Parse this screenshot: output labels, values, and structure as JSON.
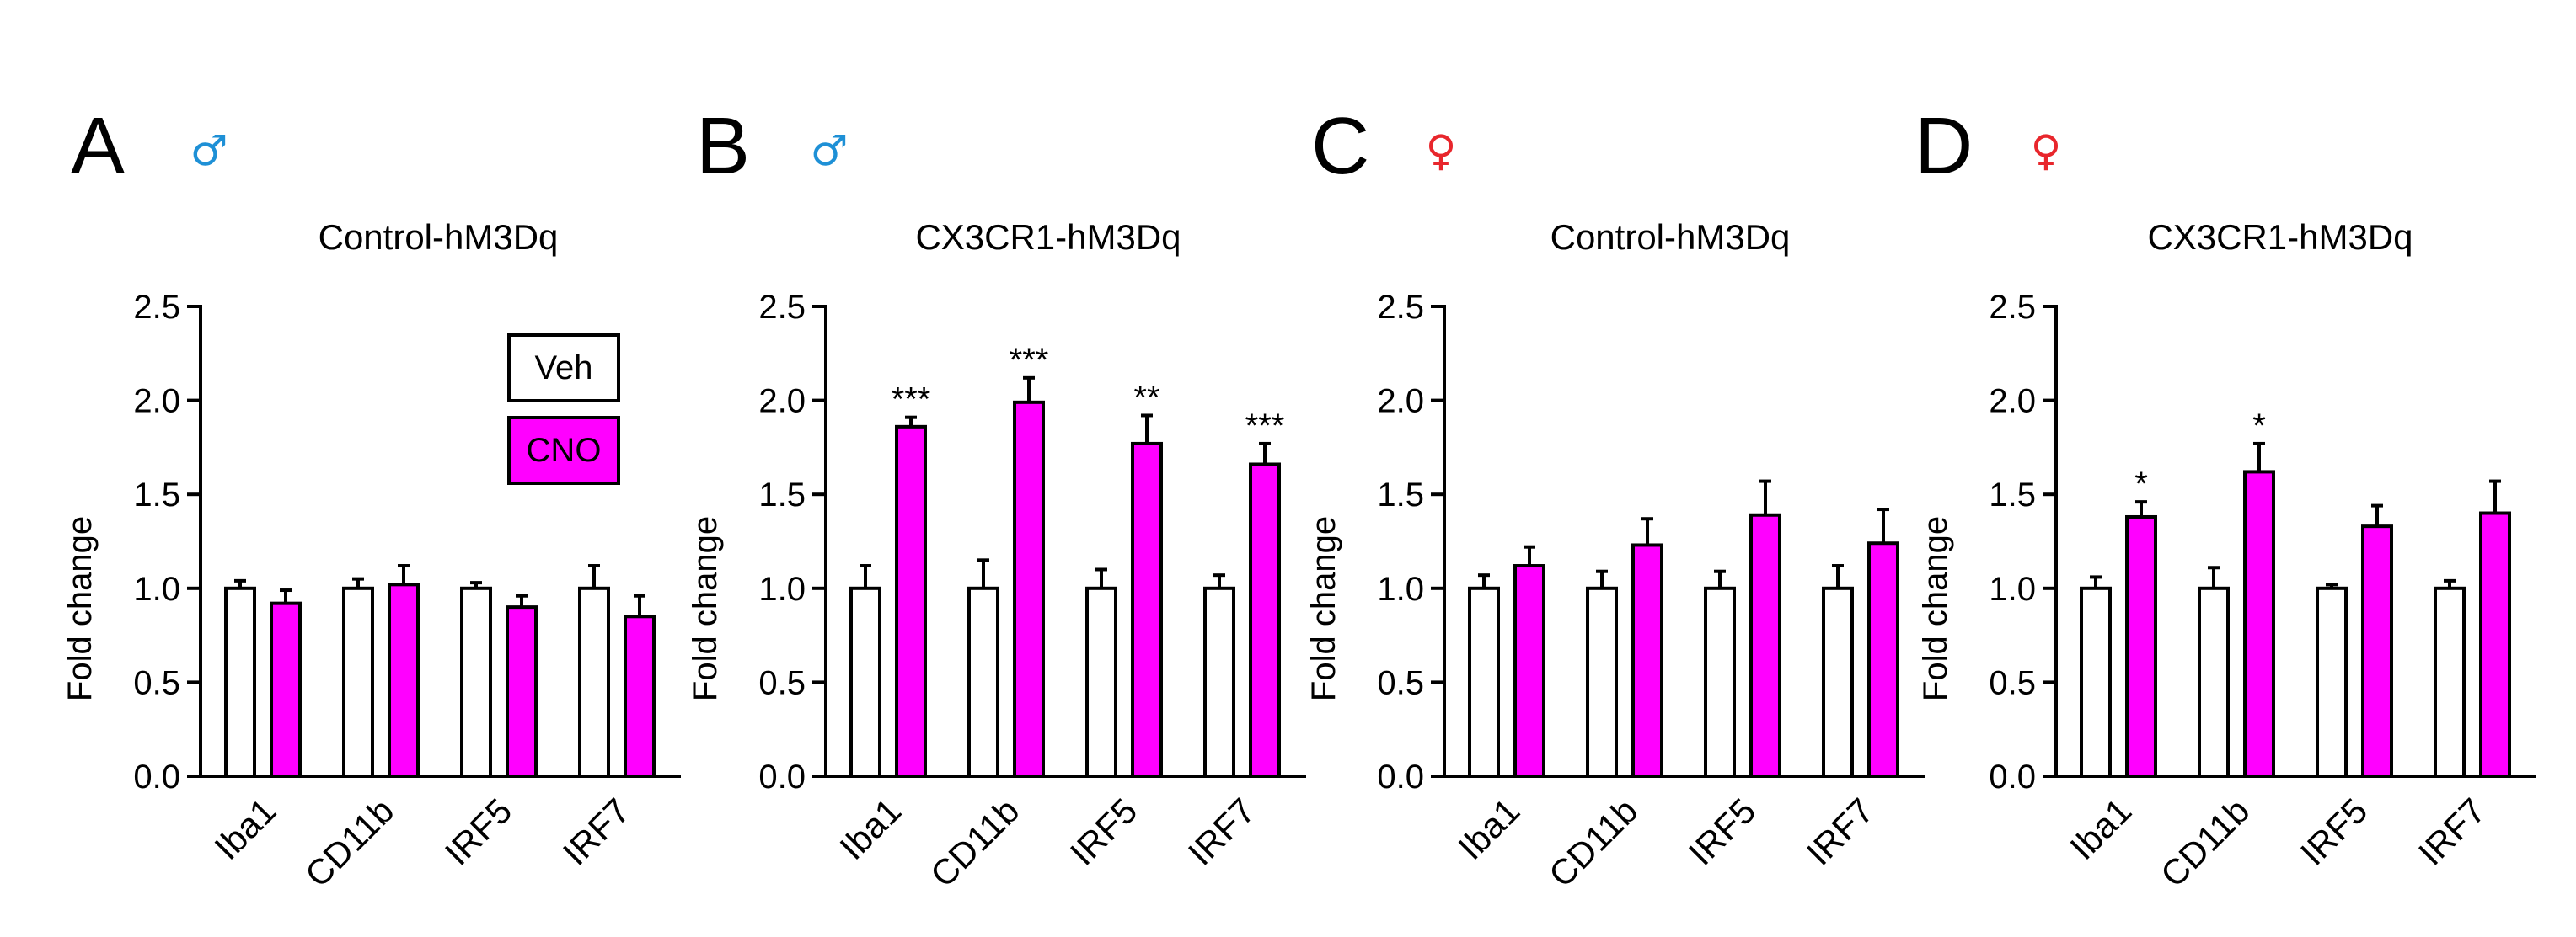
{
  "figure": {
    "legend": {
      "entries": [
        {
          "label": "Veh",
          "color": "#ffffff"
        },
        {
          "label": "CNO",
          "color": "#ff00ff"
        }
      ]
    }
  },
  "chart_data": [
    {
      "panel": "A",
      "sex_symbol": "♂",
      "sex_color": "#1e90d6",
      "type": "bar",
      "title": "Control-hM3Dq",
      "ylabel": "Fold change",
      "ylim": [
        0,
        2.5
      ],
      "yticks": [
        "0.0",
        "0.5",
        "1.0",
        "1.5",
        "2.0",
        "2.5"
      ],
      "categories": [
        "Iba1",
        "CD11b",
        "IRF5",
        "IRF7"
      ],
      "series": [
        {
          "name": "Veh",
          "color": "#ffffff",
          "values": [
            1.0,
            1.0,
            1.0,
            1.0
          ],
          "errors": [
            0.04,
            0.05,
            0.03,
            0.12
          ]
        },
        {
          "name": "CNO",
          "color": "#ff00ff",
          "values": [
            0.92,
            1.02,
            0.9,
            0.85
          ],
          "errors": [
            0.07,
            0.1,
            0.06,
            0.11
          ]
        }
      ],
      "significance": [
        "",
        "",
        "",
        ""
      ],
      "show_legend": true
    },
    {
      "panel": "B",
      "sex_symbol": "♂",
      "sex_color": "#1e90d6",
      "type": "bar",
      "title": "CX3CR1-hM3Dq",
      "ylabel": "Fold change",
      "ylim": [
        0,
        2.5
      ],
      "yticks": [
        "0.0",
        "0.5",
        "1.0",
        "1.5",
        "2.0",
        "2.5"
      ],
      "categories": [
        "Iba1",
        "CD11b",
        "IRF5",
        "IRF7"
      ],
      "series": [
        {
          "name": "Veh",
          "color": "#ffffff",
          "values": [
            1.0,
            1.0,
            1.0,
            1.0
          ],
          "errors": [
            0.12,
            0.15,
            0.1,
            0.07
          ]
        },
        {
          "name": "CNO",
          "color": "#ff00ff",
          "values": [
            1.86,
            1.99,
            1.77,
            1.66
          ],
          "errors": [
            0.05,
            0.13,
            0.15,
            0.11
          ]
        }
      ],
      "significance": [
        "***",
        "***",
        "**",
        "***"
      ],
      "show_legend": false
    },
    {
      "panel": "C",
      "sex_symbol": "♀",
      "sex_color": "#e8262c",
      "type": "bar",
      "title": "Control-hM3Dq",
      "ylabel": "Fold change",
      "ylim": [
        0,
        2.5
      ],
      "yticks": [
        "0.0",
        "0.5",
        "1.0",
        "1.5",
        "2.0",
        "2.5"
      ],
      "categories": [
        "Iba1",
        "CD11b",
        "IRF5",
        "IRF7"
      ],
      "series": [
        {
          "name": "Veh",
          "color": "#ffffff",
          "values": [
            1.0,
            1.0,
            1.0,
            1.0
          ],
          "errors": [
            0.07,
            0.09,
            0.09,
            0.12
          ]
        },
        {
          "name": "CNO",
          "color": "#ff00ff",
          "values": [
            1.12,
            1.23,
            1.39,
            1.24
          ],
          "errors": [
            0.1,
            0.14,
            0.18,
            0.18
          ]
        }
      ],
      "significance": [
        "",
        "",
        "",
        ""
      ],
      "show_legend": false
    },
    {
      "panel": "D",
      "sex_symbol": "♀",
      "sex_color": "#e8262c",
      "type": "bar",
      "title": "CX3CR1-hM3Dq",
      "ylabel": "Fold change",
      "ylim": [
        0,
        2.5
      ],
      "yticks": [
        "0.0",
        "0.5",
        "1.0",
        "1.5",
        "2.0",
        "2.5"
      ],
      "categories": [
        "Iba1",
        "CD11b",
        "IRF5",
        "IRF7"
      ],
      "series": [
        {
          "name": "Veh",
          "color": "#ffffff",
          "values": [
            1.0,
            1.0,
            1.0,
            1.0
          ],
          "errors": [
            0.06,
            0.11,
            0.02,
            0.04
          ]
        },
        {
          "name": "CNO",
          "color": "#ff00ff",
          "values": [
            1.38,
            1.62,
            1.33,
            1.4
          ],
          "errors": [
            0.08,
            0.15,
            0.11,
            0.17
          ]
        }
      ],
      "significance": [
        "*",
        "*",
        "",
        ""
      ],
      "show_legend": false
    }
  ]
}
